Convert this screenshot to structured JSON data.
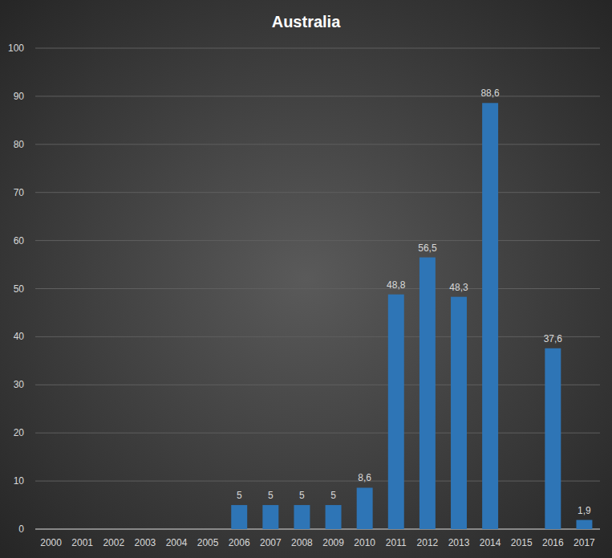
{
  "chart_data": {
    "type": "bar",
    "title": "Australia",
    "categories": [
      "2000",
      "2001",
      "2002",
      "2003",
      "2004",
      "2005",
      "2006",
      "2007",
      "2008",
      "2009",
      "2010",
      "2011",
      "2012",
      "2013",
      "2014",
      "2015",
      "2016",
      "2017"
    ],
    "values": [
      null,
      null,
      null,
      null,
      null,
      null,
      5,
      5,
      5,
      5,
      8.6,
      48.8,
      56.5,
      48.3,
      88.6,
      null,
      37.6,
      1.9
    ],
    "value_labels": [
      null,
      null,
      null,
      null,
      null,
      null,
      "5",
      "5",
      "5",
      "5",
      "8,6",
      "48,8",
      "56,5",
      "48,3",
      "88,6",
      null,
      "37,6",
      "1,9"
    ],
    "color": "#2e75b6",
    "ylim": [
      0,
      100
    ],
    "yticks": [
      0,
      10,
      20,
      30,
      40,
      50,
      60,
      70,
      80,
      90,
      100
    ],
    "grid": true,
    "data_labels": true
  }
}
